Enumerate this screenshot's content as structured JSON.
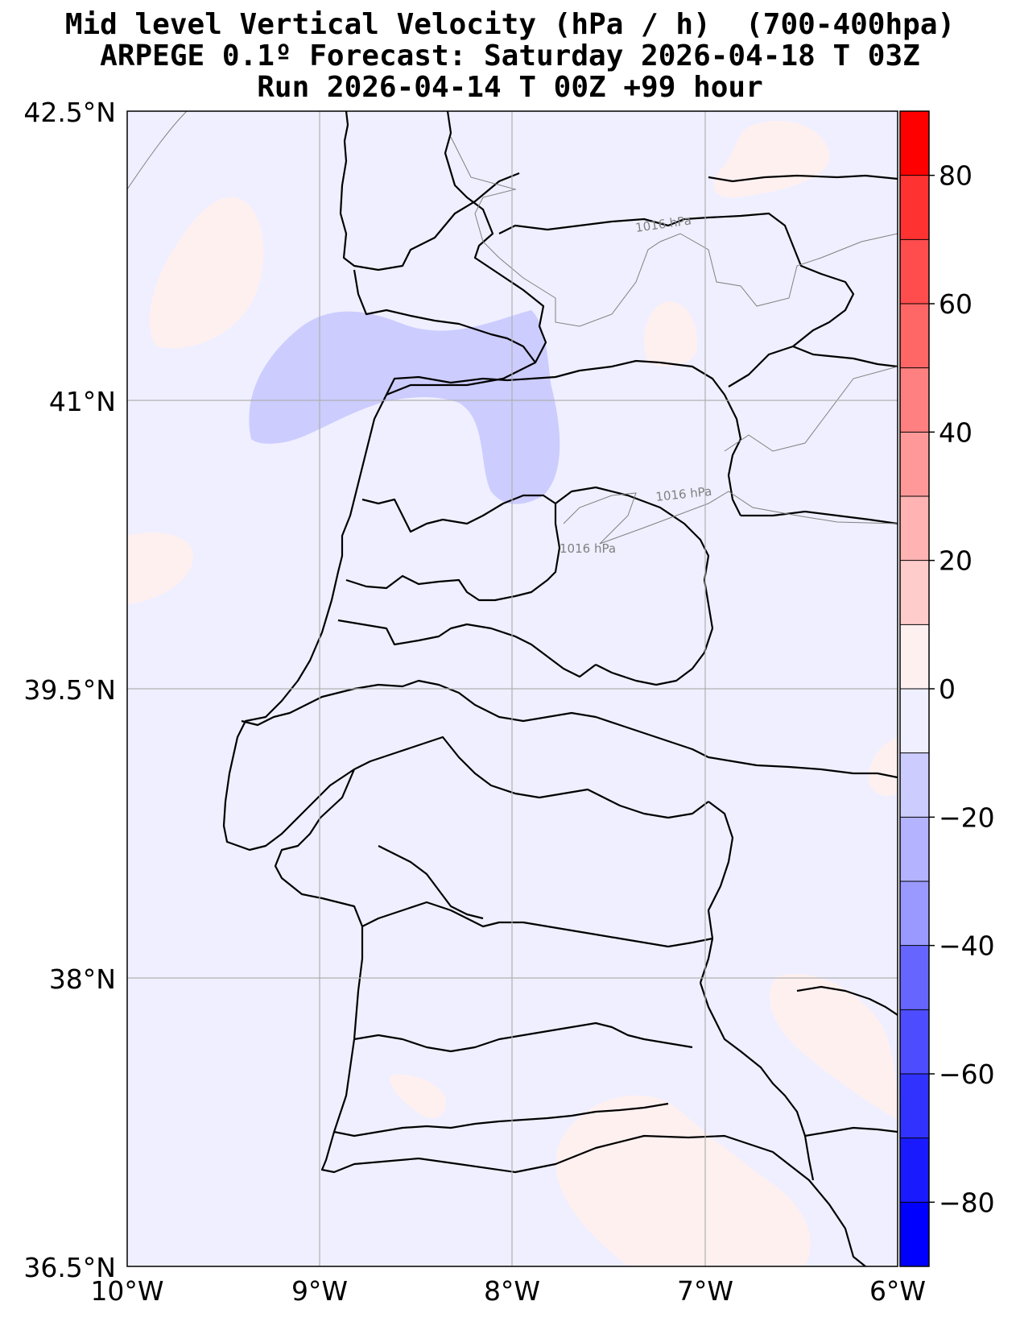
{
  "title": {
    "line1": "Mid level Vertical Velocity (hPa / h)  (700-400hpa)",
    "line2": "ARPEGE 0.1º Forecast: Saturday 2026-04-18 T 03Z",
    "line3": "Run 2026-04-14 T 00Z +99 hour"
  },
  "map": {
    "lon_range": [
      -10,
      -6
    ],
    "lat_range": [
      36.5,
      42.5
    ],
    "lon_ticks": [
      "10°W",
      "9°W",
      "8°W",
      "7°W",
      "6°W"
    ],
    "lat_ticks": [
      "42.5°N",
      "41°N",
      "39.5°N",
      "38°N",
      "36.5°N"
    ],
    "background_color": "#efefff",
    "isobar_labels": [
      "1016 hPa",
      "1016 hPa",
      "1016 hPa"
    ]
  },
  "colorbar": {
    "ticks": [
      "80",
      "60",
      "40",
      "20",
      "0",
      "−20",
      "−40",
      "−60",
      "−80"
    ],
    "levels": [
      90,
      80,
      70,
      60,
      50,
      40,
      30,
      20,
      10,
      0,
      -10,
      -20,
      -30,
      -40,
      -50,
      -60,
      -70,
      -80,
      -90
    ],
    "colors": [
      "#ff0000",
      "#ff3232",
      "#ff4d4d",
      "#ff6666",
      "#ff8080",
      "#ff9999",
      "#ffb3b3",
      "#ffcccc",
      "#fff0f0",
      "#efefff",
      "#ccccff",
      "#b3b3ff",
      "#9999ff",
      "#6666ff",
      "#4d4dff",
      "#3232ff",
      "#1a1aff",
      "#0000ff"
    ]
  }
}
